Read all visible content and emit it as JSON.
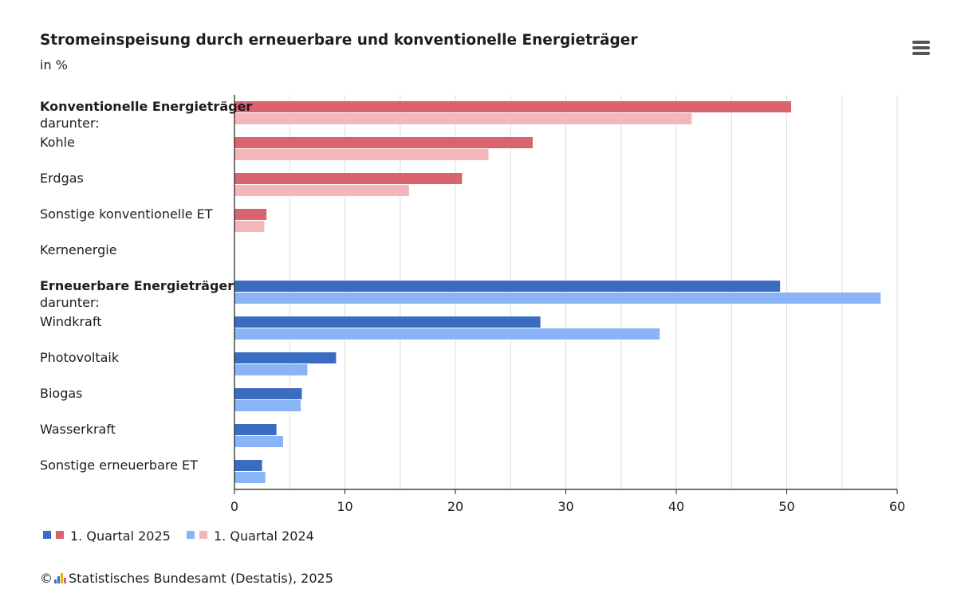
{
  "header": {
    "title": "Stromeinspeisung durch erneuerbare und konventionelle Energieträger",
    "subtitle": "in %"
  },
  "menu": {
    "icon": "hamburger-menu-icon"
  },
  "legend": {
    "items": [
      {
        "label": "1. Quartal 2025",
        "colors": [
          "#3a6cc1",
          "#d9636f"
        ]
      },
      {
        "label": "1. Quartal 2024",
        "colors": [
          "#8ab4f5",
          "#f5b6bb"
        ]
      }
    ]
  },
  "footer": {
    "copyright_symbol": "©",
    "credit": "Statistisches Bundesamt (Destatis), 2025",
    "logo_icon": "destatis-logo-icon"
  },
  "colors": {
    "conv_2025": "#d9636f",
    "conv_2024": "#f5b6bb",
    "ren_2025": "#3a6cc1",
    "ren_2024": "#8ab4f5",
    "axis": "#1d1d1b",
    "grid": "#dcdcdc"
  },
  "chart_data": {
    "type": "bar",
    "orientation": "horizontal",
    "categories": [
      {
        "label": "Konventionelle Energieträger",
        "sublabel": "darunter:",
        "bold": true,
        "group": "conventional"
      },
      {
        "label": "Kohle",
        "group": "conventional"
      },
      {
        "label": "Erdgas",
        "group": "conventional"
      },
      {
        "label": "Sonstige konventionelle ET",
        "group": "conventional"
      },
      {
        "label": "Kernenergie",
        "group": "conventional"
      },
      {
        "label": "Erneuerbare Energieträger",
        "sublabel": "darunter:",
        "bold": true,
        "group": "renewable"
      },
      {
        "label": "Windkraft",
        "group": "renewable"
      },
      {
        "label": "Photovoltaik",
        "group": "renewable"
      },
      {
        "label": "Biogas",
        "group": "renewable"
      },
      {
        "label": "Wasserkraft",
        "group": "renewable"
      },
      {
        "label": "Sonstige erneuerbare ET",
        "group": "renewable"
      }
    ],
    "series": [
      {
        "name": "1. Quartal 2025",
        "values": [
          50.4,
          27.0,
          20.6,
          2.9,
          0,
          49.4,
          27.7,
          9.2,
          6.1,
          3.8,
          2.5
        ]
      },
      {
        "name": "1. Quartal 2024",
        "values": [
          41.4,
          23.0,
          15.8,
          2.7,
          0,
          58.5,
          38.5,
          6.6,
          6.0,
          4.4,
          2.8
        ]
      }
    ],
    "xlim": [
      0,
      60
    ],
    "xticks": [
      0,
      10,
      20,
      30,
      40,
      50,
      60
    ],
    "grid": true,
    "legend_position": "bottom-left"
  }
}
